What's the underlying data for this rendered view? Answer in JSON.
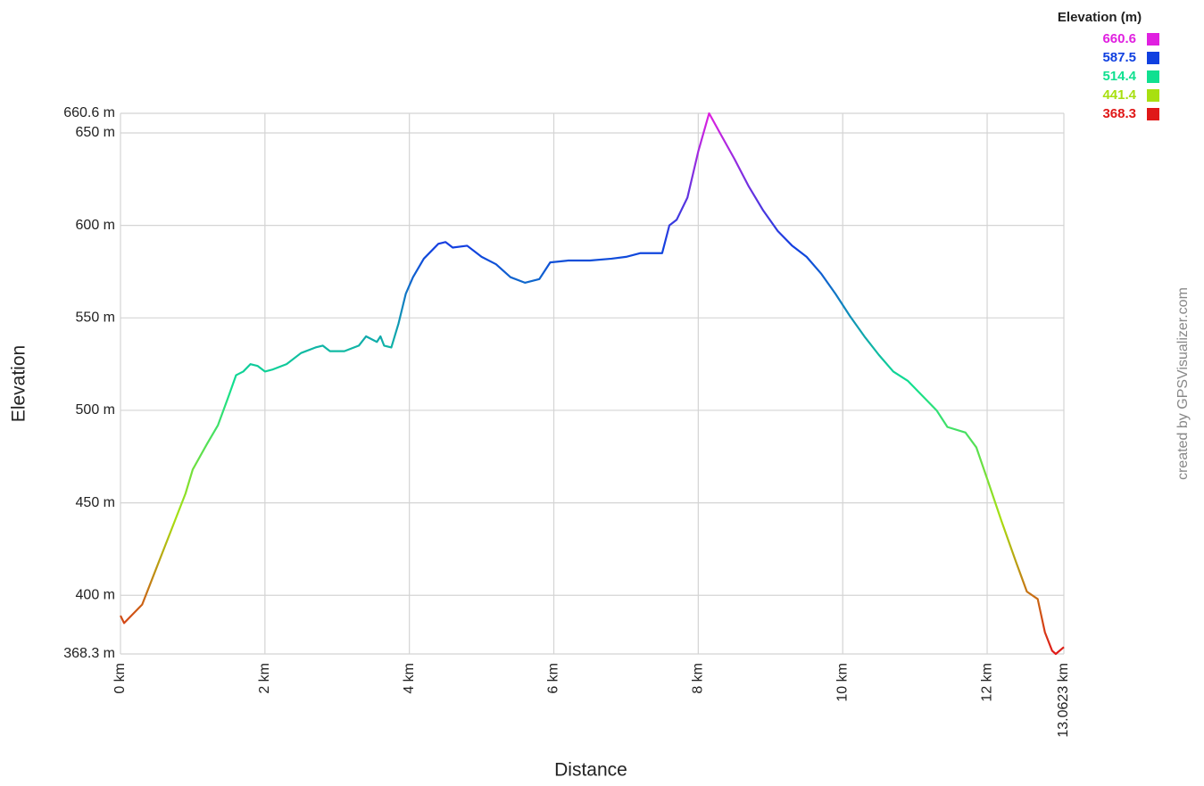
{
  "chart_data": {
    "type": "line",
    "x_label": "Distance",
    "y_label": "Elevation",
    "credit": "created by GPSVisualizer.com",
    "legend_title": "Elevation (m)",
    "color_scale": [
      {
        "value": 660.6,
        "color": "#e020e0"
      },
      {
        "value": 587.5,
        "color": "#1040e0"
      },
      {
        "value": 514.4,
        "color": "#10e090"
      },
      {
        "value": 441.4,
        "color": "#a8e010"
      },
      {
        "value": 368.3,
        "color": "#e01818"
      }
    ],
    "grid": true,
    "xlim": [
      0,
      13.0623
    ],
    "ylim": [
      368.3,
      660.6
    ],
    "xticks": [
      {
        "value": 0,
        "label": "0 km"
      },
      {
        "value": 2,
        "label": "2 km"
      },
      {
        "value": 4,
        "label": "4 km"
      },
      {
        "value": 6,
        "label": "6 km"
      },
      {
        "value": 8,
        "label": "8 km"
      },
      {
        "value": 10,
        "label": "10 km"
      },
      {
        "value": 12,
        "label": "12 km"
      },
      {
        "value": 13.0623,
        "label": "13.0623 km"
      }
    ],
    "yticks": [
      {
        "value": 368.3,
        "label": "368.3 m"
      },
      {
        "value": 400,
        "label": "400 m"
      },
      {
        "value": 450,
        "label": "450 m"
      },
      {
        "value": 500,
        "label": "500 m"
      },
      {
        "value": 550,
        "label": "550 m"
      },
      {
        "value": 600,
        "label": "600 m"
      },
      {
        "value": 650,
        "label": "650 m"
      },
      {
        "value": 660.6,
        "label": "660.6 m"
      }
    ],
    "x": [
      0,
      0.05,
      0.3,
      0.5,
      0.7,
      0.9,
      1.0,
      1.2,
      1.35,
      1.5,
      1.6,
      1.7,
      1.8,
      1.9,
      2.0,
      2.1,
      2.3,
      2.5,
      2.7,
      2.8,
      2.9,
      3.1,
      3.3,
      3.4,
      3.55,
      3.6,
      3.65,
      3.75,
      3.85,
      3.95,
      4.05,
      4.2,
      4.4,
      4.5,
      4.6,
      4.8,
      5.0,
      5.2,
      5.4,
      5.6,
      5.8,
      5.95,
      6.2,
      6.5,
      6.8,
      7.0,
      7.2,
      7.5,
      7.6,
      7.7,
      7.85,
      8.0,
      8.15,
      8.3,
      8.5,
      8.7,
      8.9,
      9.1,
      9.3,
      9.5,
      9.7,
      9.9,
      10.1,
      10.3,
      10.5,
      10.7,
      10.9,
      11.1,
      11.3,
      11.45,
      11.7,
      11.85,
      12.0,
      12.2,
      12.4,
      12.55,
      12.7,
      12.8,
      12.9,
      12.95,
      13.0623
    ],
    "values": [
      389,
      385,
      395,
      415,
      435,
      455,
      468,
      482,
      492,
      508,
      519,
      521,
      525,
      524,
      521,
      522,
      525,
      531,
      534,
      535,
      532,
      532,
      535,
      540,
      537,
      540,
      535,
      534,
      547,
      563,
      572,
      582,
      590,
      591,
      588,
      589,
      583,
      579,
      572,
      569,
      571,
      580,
      581,
      581,
      582,
      583,
      585,
      585,
      600,
      603,
      615,
      640,
      660.6,
      650,
      636,
      621,
      608,
      597,
      589,
      583,
      574,
      563,
      551,
      540,
      530,
      521,
      516,
      508,
      500,
      491,
      488,
      480,
      463,
      440,
      418,
      402,
      398,
      380,
      370,
      368.3,
      372
    ]
  }
}
